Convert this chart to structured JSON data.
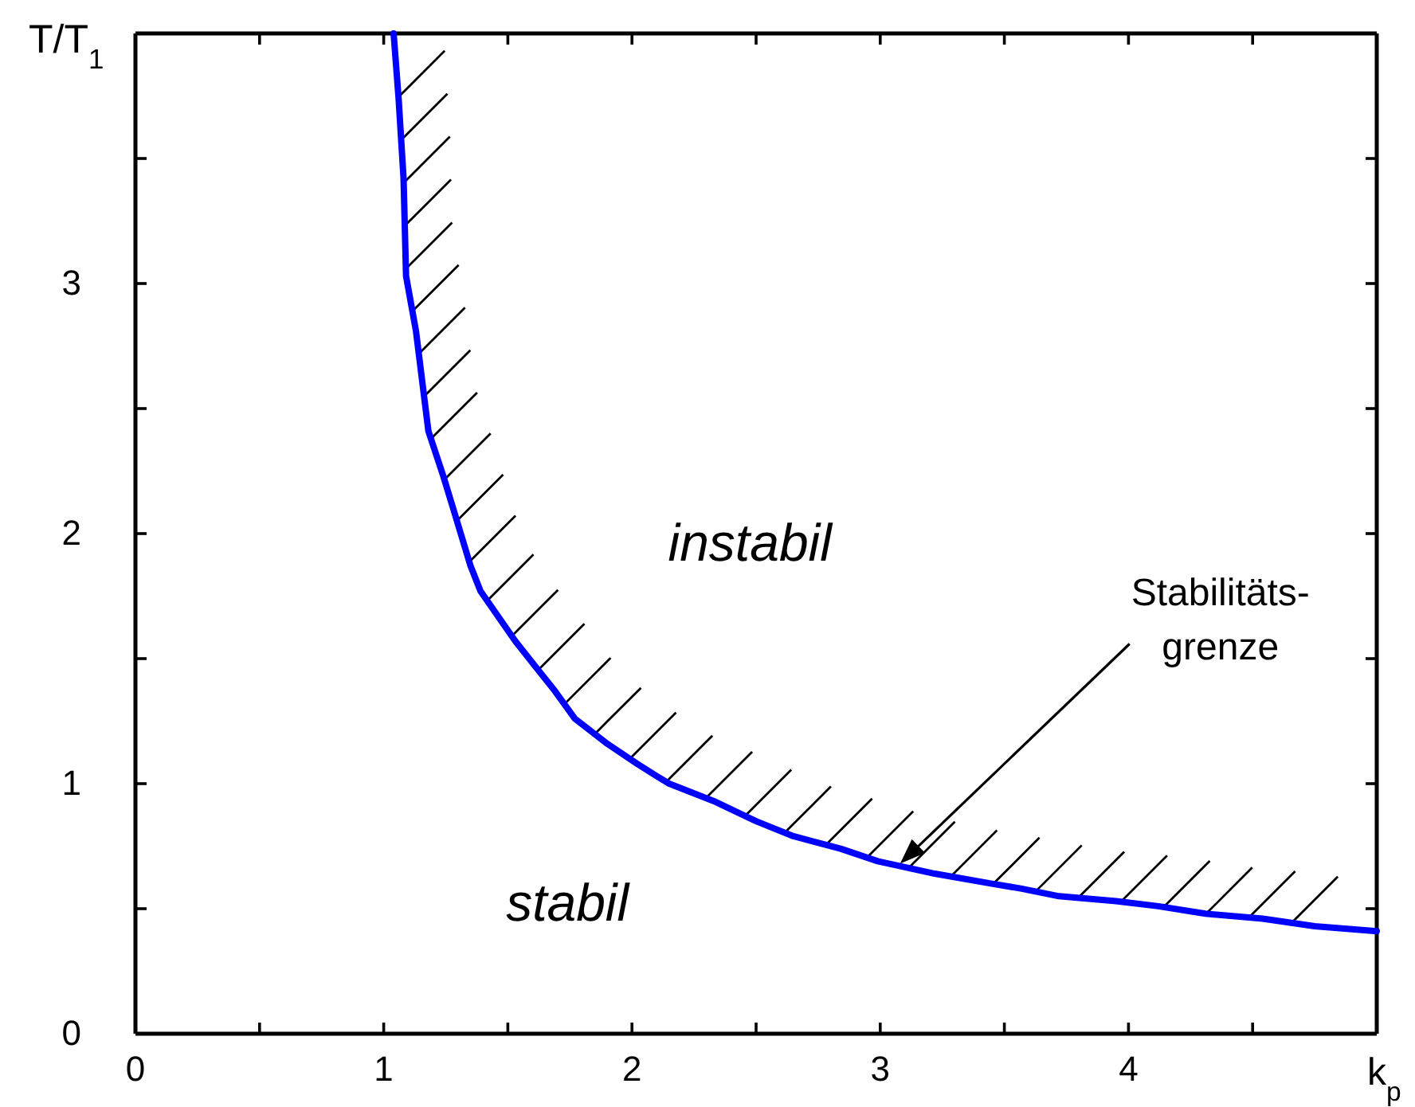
{
  "chart_data": {
    "type": "line",
    "xlabel": "k$_{p}$",
    "ylabel": "T/T$_{1}$",
    "xlim": [
      0,
      5
    ],
    "ylim": [
      0,
      4
    ],
    "xticks": [
      0,
      {
        "value": 0.5,
        "label": null
      },
      1,
      {
        "value": 1.5,
        "label": null
      },
      2,
      {
        "value": 2.5,
        "label": null
      },
      3,
      {
        "value": 3.5,
        "label": null
      },
      4,
      {
        "value": 4.5,
        "label": null
      }
    ],
    "yticks": [
      0,
      {
        "value": 0.5,
        "label": null
      },
      1,
      {
        "value": 1.5,
        "label": null
      },
      2,
      {
        "value": 2.5,
        "label": null
      },
      3,
      {
        "value": 3.5,
        "label": null
      }
    ],
    "x": [
      1.04,
      1.06,
      1.08,
      1.09,
      1.13,
      1.18,
      1.24,
      1.28,
      1.35,
      1.39,
      1.53,
      1.61,
      1.69,
      1.77,
      1.9,
      2.02,
      2.1,
      2.15,
      2.33,
      2.5,
      2.65,
      2.84,
      2.99,
      3.22,
      3.45,
      3.57,
      3.72,
      3.95,
      4.12,
      4.31,
      4.54,
      4.75,
      5.0
    ],
    "series": [
      {
        "color": "#0000ff",
        "values": [
          4.0,
          3.74,
          3.42,
          3.03,
          2.81,
          2.41,
          2.23,
          2.1,
          1.87,
          1.77,
          1.57,
          1.47,
          1.37,
          1.26,
          1.16,
          1.08,
          1.03,
          1.0,
          0.93,
          0.85,
          0.79,
          0.74,
          0.69,
          0.64,
          0.6,
          0.58,
          0.55,
          0.53,
          0.51,
          0.48,
          0.46,
          0.43,
          0.41
        ]
      }
    ],
    "annotations": [
      "instabil",
      "stabil",
      "Stabilitäts-\ngrenze"
    ]
  }
}
